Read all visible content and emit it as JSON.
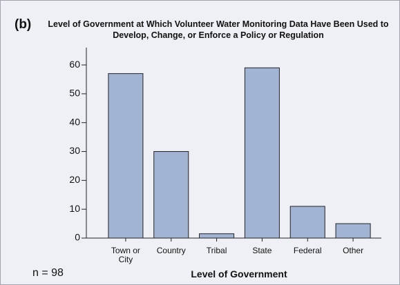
{
  "chart_data": {
    "type": "bar",
    "panel_label": "(b)",
    "title": "Level of Government at Which Volunteer Water Monitoring Data Have Been Used to Develop, Change, or Enforce a Policy or Regulation",
    "categories": [
      "Town or City",
      "Country",
      "Tribal",
      "State",
      "Federal",
      "Other"
    ],
    "values": [
      57,
      30,
      1.5,
      59,
      11,
      5
    ],
    "color": "#a2b4d4",
    "ylim": [
      0,
      66
    ],
    "yticks": [
      0,
      10,
      20,
      30,
      40,
      50,
      60
    ],
    "xlabel": "Level of Government",
    "annotation": "n = 98"
  }
}
